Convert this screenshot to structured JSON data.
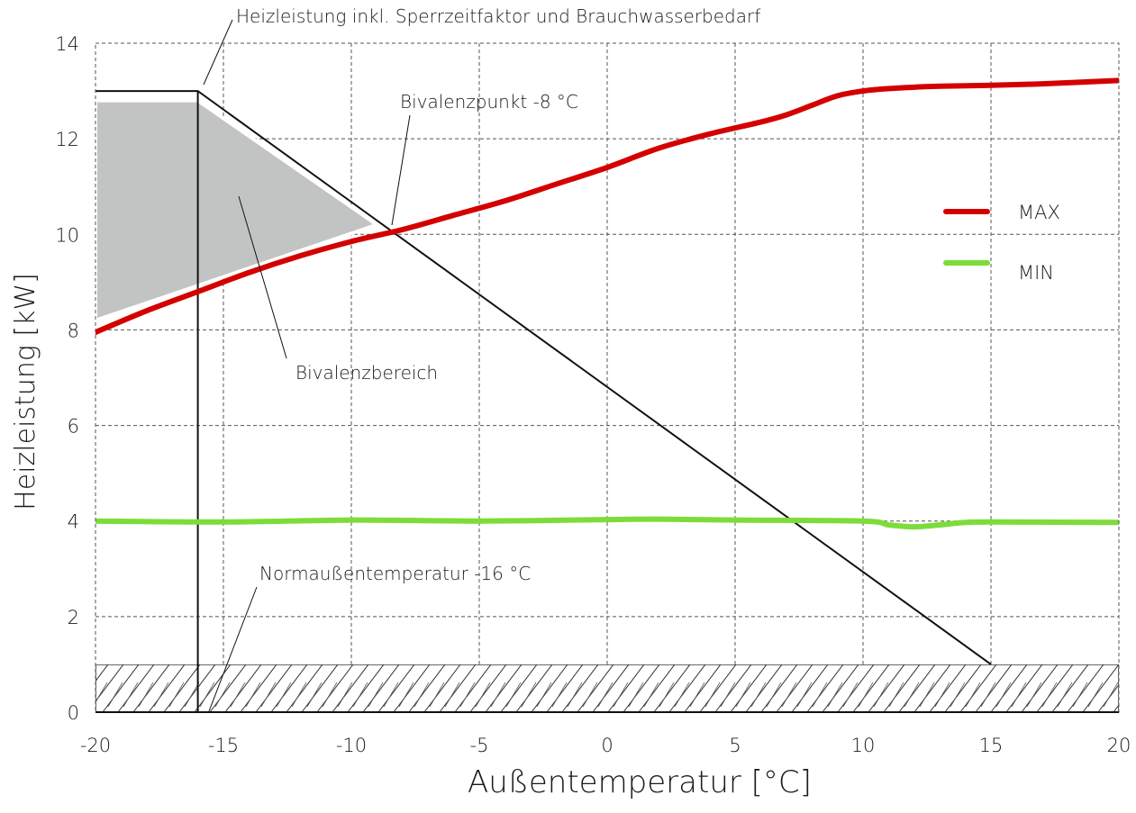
{
  "chart_data": {
    "type": "line",
    "title": "",
    "xlabel": "Außentemperatur [°C]",
    "ylabel": "Heizleistung [kW]",
    "xlim": [
      -20,
      20
    ],
    "ylim": [
      0,
      14
    ],
    "x_ticks": [
      -20,
      -15,
      -10,
      -5,
      0,
      5,
      10,
      15,
      20
    ],
    "y_ticks": [
      0,
      2,
      4,
      6,
      8,
      10,
      12,
      14
    ],
    "x_tick_labels": [
      "-20",
      "-15",
      "-10",
      "-5",
      "0",
      "5",
      "10",
      "15",
      "20"
    ],
    "y_tick_labels": [
      "0",
      "2",
      "4",
      "6",
      "8",
      "10",
      "12",
      "14"
    ],
    "grid": true,
    "legend_position": "right",
    "series": [
      {
        "name": "MAX",
        "color": "#d40000",
        "x": [
          -20,
          -18,
          -16,
          -14,
          -12,
          -10,
          -8,
          -6,
          -4,
          -2,
          0,
          2,
          4,
          6,
          7,
          8,
          9,
          10,
          11,
          12,
          13,
          15,
          17,
          20
        ],
        "y": [
          7.95,
          8.4,
          8.8,
          9.2,
          9.55,
          9.85,
          10.1,
          10.4,
          10.7,
          11.05,
          11.4,
          11.8,
          12.1,
          12.35,
          12.5,
          12.7,
          12.9,
          13.0,
          13.05,
          13.08,
          13.1,
          13.12,
          13.15,
          13.22
        ]
      },
      {
        "name": "MIN",
        "color": "#7ddc3a",
        "x": [
          -20,
          -15,
          -10,
          -5,
          0,
          2,
          5,
          10,
          11,
          12,
          13,
          14,
          15,
          20
        ],
        "y": [
          4.0,
          3.98,
          4.02,
          4.0,
          4.03,
          4.04,
          4.02,
          4.0,
          3.92,
          3.88,
          3.92,
          3.97,
          3.98,
          3.97
        ]
      }
    ],
    "heating_load_line": {
      "x": [
        -20,
        -16,
        15
      ],
      "y": [
        13.0,
        13.0,
        1.0
      ]
    },
    "norm_outdoor_temp_line": {
      "x": -16,
      "y": [
        0,
        13.0
      ]
    },
    "bivalent_point": {
      "x": -8,
      "y": 10.1
    },
    "bivalent_area_polygon": {
      "x": [
        -20,
        -16,
        -9,
        -20
      ],
      "y": [
        12.8,
        12.8,
        10.2,
        8.2
      ],
      "color": "#c2c4c3"
    },
    "hatched_band": {
      "y": [
        0,
        1
      ]
    },
    "annotations": [
      {
        "text": "Heizleistung inkl. Sperrzeitfaktor und Brauchwasserbedarf"
      },
      {
        "text": "Bivalenzpunkt  -8 °C"
      },
      {
        "text": "Bivalenzbereich"
      },
      {
        "text": "Normaußentemperatur  -16 °C"
      }
    ]
  }
}
